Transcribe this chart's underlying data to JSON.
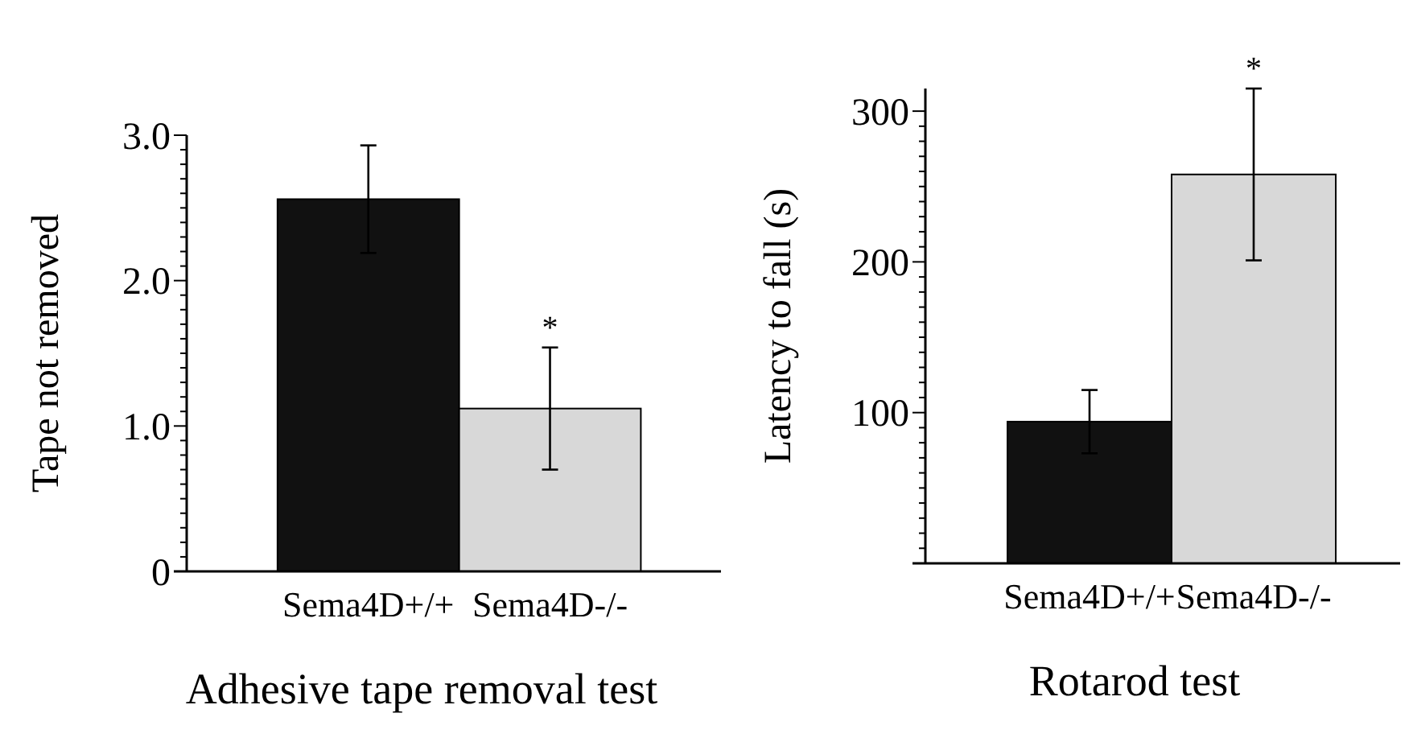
{
  "chart_data": [
    {
      "type": "bar",
      "title": "Adhesive tape removal test",
      "ylabel": "Tape not removed",
      "categories": [
        "Sema4D+/+",
        "Sema4D-/-"
      ],
      "values": [
        2.56,
        1.12
      ],
      "colors": [
        "#111111",
        "#d8d8d8"
      ],
      "errors": [
        0.37,
        0.42
      ],
      "ylim": [
        0,
        3
      ],
      "yticks": [
        0,
        {
          "value": 0.1,
          "label": null
        },
        {
          "value": 0.2,
          "label": null
        },
        {
          "value": 0.3,
          "label": null
        },
        {
          "value": 0.4,
          "label": null
        },
        {
          "value": 0.5,
          "label": null
        },
        {
          "value": 0.6,
          "label": null
        },
        {
          "value": 0.7,
          "label": null
        },
        {
          "value": 0.8,
          "label": null
        },
        {
          "value": 0.9,
          "label": null
        },
        {
          "value": 1,
          "label": "1.0"
        },
        {
          "value": 1.1,
          "label": null
        },
        {
          "value": 1.2,
          "label": null
        },
        {
          "value": 1.3,
          "label": null
        },
        {
          "value": 1.4,
          "label": null
        },
        {
          "value": 1.5,
          "label": null
        },
        {
          "value": 1.6,
          "label": null
        },
        {
          "value": 1.7,
          "label": null
        },
        {
          "value": 1.8,
          "label": null
        },
        {
          "value": 1.9,
          "label": null
        },
        {
          "value": 2,
          "label": "2.0"
        },
        {
          "value": 2.1,
          "label": null
        },
        {
          "value": 2.2,
          "label": null
        },
        {
          "value": 2.3,
          "label": null
        },
        {
          "value": 2.4,
          "label": null
        },
        {
          "value": 2.5,
          "label": null
        },
        {
          "value": 2.6,
          "label": null
        },
        {
          "value": 2.7,
          "label": null
        },
        {
          "value": 2.8,
          "label": null
        },
        {
          "value": 2.9,
          "label": null
        },
        {
          "value": 3,
          "label": "3.0"
        }
      ],
      "annotations": [
        {
          "text": "*",
          "x": "Sema4D-/-",
          "y": 1.54
        }
      ],
      "grid": false
    },
    {
      "type": "bar",
      "title": "Rotarod test",
      "ylabel": "Latency to fall (s)",
      "categories": [
        "Sema4D+/+",
        "Sema4D-/-"
      ],
      "values": [
        94,
        258
      ],
      "colors": [
        "#111111",
        "#d8d8d8"
      ],
      "errors": [
        21,
        57
      ],
      "ylim": [
        0,
        315
      ],
      "yticks": [
        {
          "value": 0,
          "label": null
        },
        {
          "value": 10,
          "label": null
        },
        {
          "value": 20,
          "label": null
        },
        {
          "value": 30,
          "label": null
        },
        {
          "value": 40,
          "label": null
        },
        {
          "value": 50,
          "label": null
        },
        {
          "value": 60,
          "label": null
        },
        {
          "value": 70,
          "label": null
        },
        {
          "value": 80,
          "label": null
        },
        {
          "value": 90,
          "label": null
        },
        100,
        {
          "value": 110,
          "label": null
        },
        {
          "value": 120,
          "label": null
        },
        {
          "value": 130,
          "label": null
        },
        {
          "value": 140,
          "label": null
        },
        {
          "value": 150,
          "label": null
        },
        {
          "value": 160,
          "label": null
        },
        {
          "value": 170,
          "label": null
        },
        {
          "value": 180,
          "label": null
        },
        {
          "value": 190,
          "label": null
        },
        200,
        {
          "value": 210,
          "label": null
        },
        {
          "value": 220,
          "label": null
        },
        {
          "value": 230,
          "label": null
        },
        {
          "value": 240,
          "label": null
        },
        {
          "value": 250,
          "label": null
        },
        {
          "value": 260,
          "label": null
        },
        {
          "value": 270,
          "label": null
        },
        {
          "value": 280,
          "label": null
        },
        {
          "value": 290,
          "label": null
        },
        300
      ],
      "annotations": [
        {
          "text": "*",
          "x": "Sema4D-/-",
          "y": 315
        }
      ],
      "grid": false
    }
  ]
}
